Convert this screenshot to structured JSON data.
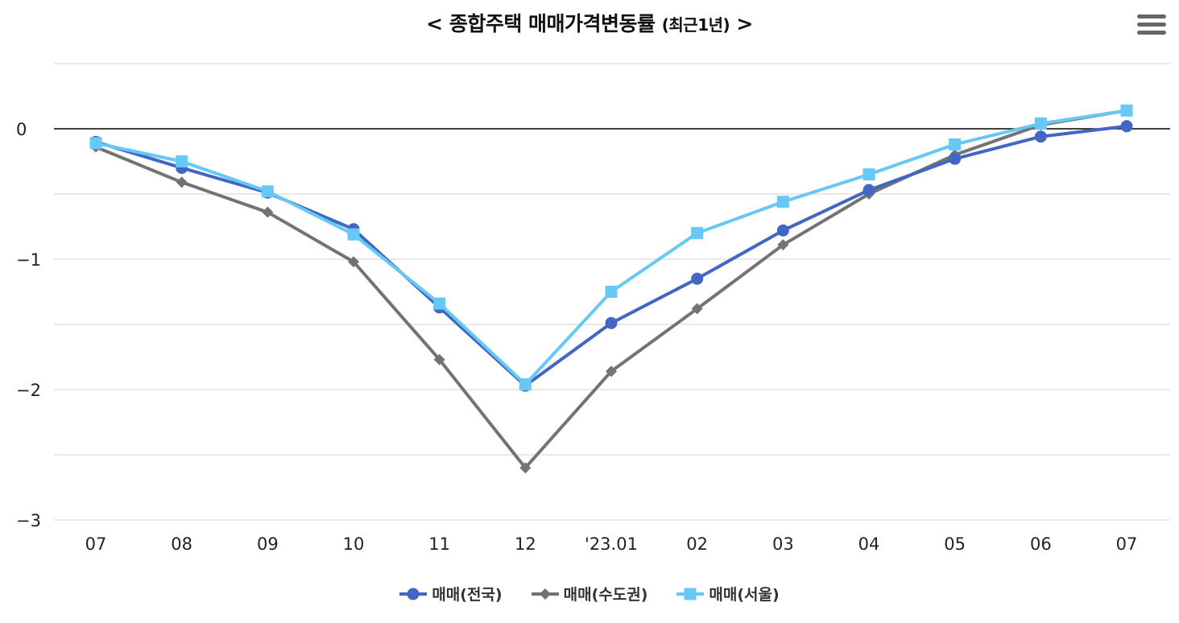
{
  "title": {
    "prefix": "<",
    "main": "종합주택 매매가격변동률",
    "sub": "(최근1년)",
    "suffix": ">"
  },
  "menu": {
    "icon": "hamburger-menu-icon"
  },
  "chart_data": {
    "type": "line",
    "title": "종합주택 매매가격변동률 (최근1년)",
    "xlabel": "",
    "ylabel": "",
    "ylim": [
      -3,
      0.5
    ],
    "yticks": [
      0,
      -1,
      -2,
      -3
    ],
    "ytick_labels": [
      "0",
      "−1",
      "−2",
      "−3"
    ],
    "grid": true,
    "legend_position": "bottom-center",
    "categories": [
      "07",
      "08",
      "09",
      "10",
      "11",
      "12",
      "'23.01",
      "02",
      "03",
      "04",
      "05",
      "06",
      "07"
    ],
    "series": [
      {
        "name": "매매(전국)",
        "color": "#4166c3",
        "marker": "circle",
        "values": [
          -0.1,
          -0.3,
          -0.49,
          -0.77,
          -1.37,
          -1.97,
          -1.49,
          -1.15,
          -0.78,
          -0.47,
          -0.23,
          -0.06,
          0.02
        ]
      },
      {
        "name": "매매(수도권)",
        "color": "#737373",
        "marker": "diamond",
        "values": [
          -0.14,
          -0.41,
          -0.64,
          -1.02,
          -1.77,
          -2.6,
          -1.86,
          -1.38,
          -0.89,
          -0.5,
          -0.2,
          0.03,
          0.14
        ]
      },
      {
        "name": "매매(서울)",
        "color": "#66c9f5",
        "marker": "square",
        "values": [
          -0.11,
          -0.25,
          -0.48,
          -0.81,
          -1.34,
          -1.96,
          -1.25,
          -0.8,
          -0.56,
          -0.35,
          -0.12,
          0.04,
          0.14
        ]
      }
    ]
  }
}
